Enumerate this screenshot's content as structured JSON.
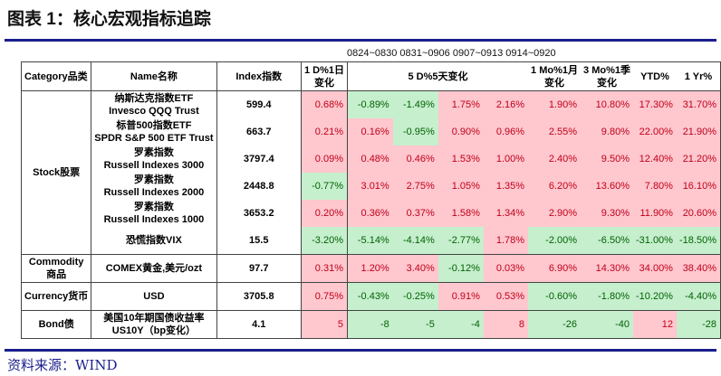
{
  "title": "图表 1：核心宏观指标追踪",
  "weeks": "0824~0830 0831~0906 0907~0913 0914~0920",
  "headers": {
    "category": "Category品类",
    "name": "Name名称",
    "index": "Index指数",
    "d1a": "1 D%1日",
    "d1b": "变化",
    "d5": "5 D%5天变化",
    "mo1a": "1 Mo%1月",
    "mo1b": "变化",
    "mo3a": "3 Mo%1季",
    "mo3b": "变化",
    "ytd": "YTD%",
    "yr1": "1 Yr%"
  },
  "groups": [
    {
      "category": [
        "Stock股票",
        ""
      ],
      "rows": [
        {
          "name": [
            "纳斯达克指数ETF",
            "Invesco QQQ Trust"
          ],
          "index": "599.4",
          "values": [
            "0.68%",
            "-0.89%",
            "-1.49%",
            "1.75%",
            "2.16%",
            "1.90%",
            "10.80%",
            "17.30%",
            "31.70%"
          ]
        },
        {
          "name": [
            "标普500指数ETF",
            "SPDR S&P 500 ETF Trust"
          ],
          "index": "663.7",
          "values": [
            "0.21%",
            "0.16%",
            "-0.95%",
            "0.90%",
            "0.96%",
            "2.55%",
            "9.80%",
            "22.00%",
            "21.90%"
          ]
        },
        {
          "name": [
            "罗素指数",
            "Russell Indexes 3000"
          ],
          "index": "3797.4",
          "values": [
            "0.09%",
            "0.48%",
            "0.46%",
            "1.53%",
            "1.00%",
            "2.40%",
            "9.50%",
            "12.40%",
            "21.20%"
          ]
        },
        {
          "name": [
            "罗素指数",
            "Russell Indexes 2000"
          ],
          "index": "2448.8",
          "values": [
            "-0.77%",
            "3.01%",
            "2.75%",
            "1.05%",
            "1.35%",
            "6.20%",
            "13.60%",
            "7.80%",
            "16.10%"
          ]
        },
        {
          "name": [
            "罗素指数",
            "Russell Indexes 1000"
          ],
          "index": "3653.2",
          "values": [
            "0.20%",
            "0.36%",
            "0.37%",
            "1.58%",
            "1.34%",
            "2.90%",
            "9.30%",
            "11.90%",
            "20.60%"
          ]
        },
        {
          "name": [
            "恐慌指数VIX",
            ""
          ],
          "index": "15.5",
          "values": [
            "-3.20%",
            "-5.14%",
            "-4.14%",
            "-2.77%",
            "1.78%",
            "-2.00%",
            "-6.50%",
            "-31.00%",
            "-18.50%"
          ]
        }
      ]
    },
    {
      "category": [
        "Commodity",
        "商品"
      ],
      "rows": [
        {
          "name": [
            "COMEX黄金,美元/ozt",
            ""
          ],
          "index": "97.7",
          "values": [
            "0.31%",
            "1.20%",
            "3.40%",
            "-0.12%",
            "0.03%",
            "6.90%",
            "14.30%",
            "34.00%",
            "38.40%"
          ]
        }
      ]
    },
    {
      "category": [
        "Currency货币",
        ""
      ],
      "rows": [
        {
          "name": [
            "USD",
            ""
          ],
          "index": "3705.8",
          "values": [
            "0.75%",
            "-0.43%",
            "-0.25%",
            "0.91%",
            "0.53%",
            "-0.60%",
            "-1.80%",
            "-10.20%",
            "-4.40%"
          ]
        }
      ]
    },
    {
      "category": [
        "Bond债",
        ""
      ],
      "rows": [
        {
          "name": [
            "美国10年期国债收益率",
            "US10Y（bp变化）"
          ],
          "index": "4.1",
          "values": [
            "5",
            "-8",
            "-5",
            "-4",
            "8",
            "-26",
            "-40",
            "12",
            "-28"
          ]
        }
      ]
    }
  ],
  "source": "资料来源：WIND"
}
